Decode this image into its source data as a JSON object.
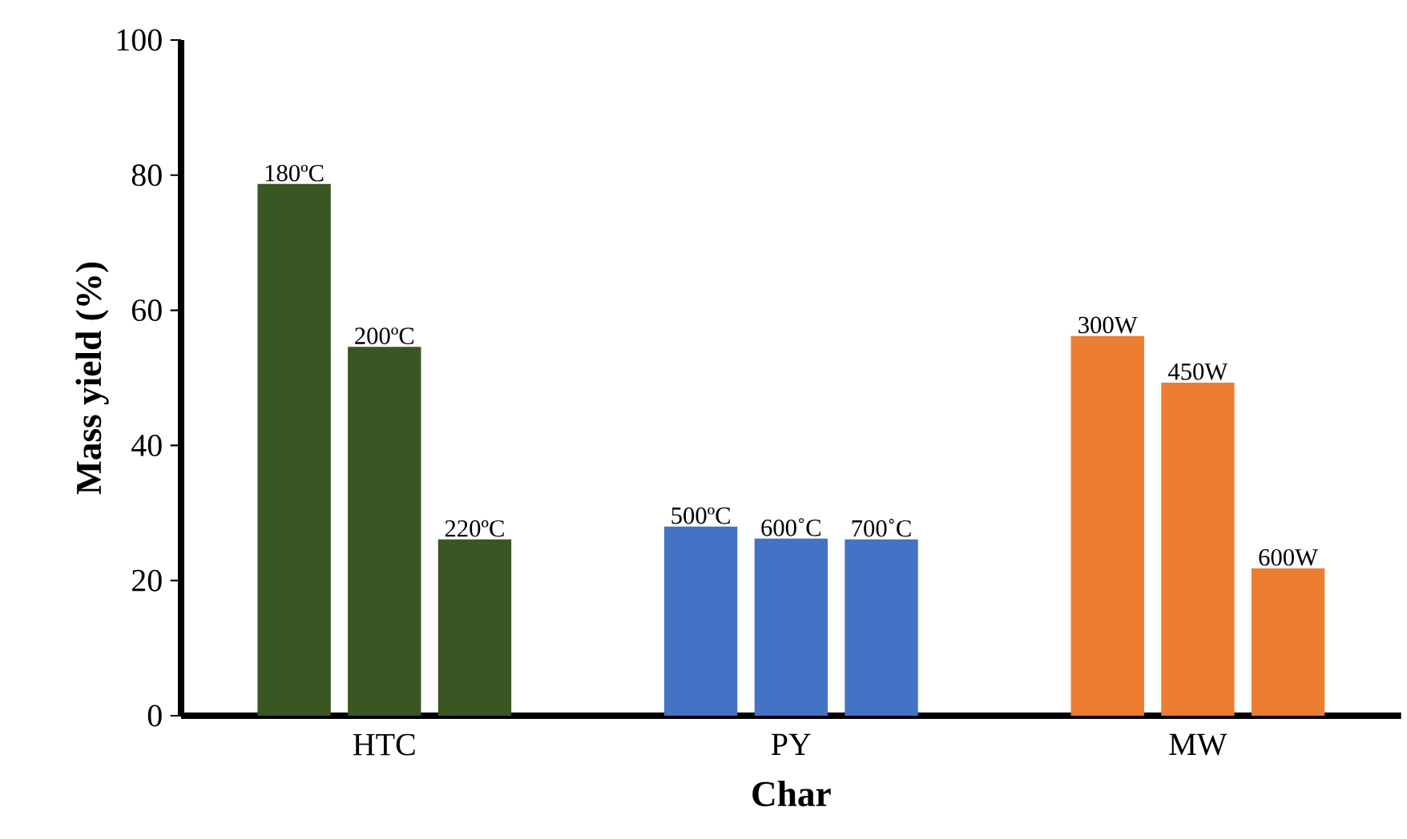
{
  "chart_data": {
    "type": "bar",
    "xlabel": "Char",
    "ylabel": "Mass yield (%)",
    "categories": [
      "HTC",
      "PY",
      "MW"
    ],
    "ylim": [
      0,
      100
    ],
    "yticks": [
      0,
      20,
      40,
      60,
      80,
      100
    ],
    "series": [
      {
        "colors": [
          "#3a5623",
          "#4472c4",
          "#ed7d31"
        ],
        "values": [
          78.7,
          28.0,
          56.2
        ]
      },
      {
        "colors": [
          "#3a5623",
          "#4472c4",
          "#ed7d31"
        ],
        "values": [
          54.6,
          26.2,
          49.3
        ]
      },
      {
        "colors": [
          "#3a5623",
          "#4472c4",
          "#ed7d31"
        ],
        "values": [
          26.1,
          26.1,
          21.8
        ]
      }
    ],
    "annotations": [
      "180ºC",
      "200ºC",
      "220ºC",
      "500ºC",
      "600˚C",
      "700˚C",
      "300W",
      "450W",
      "600W"
    ]
  }
}
